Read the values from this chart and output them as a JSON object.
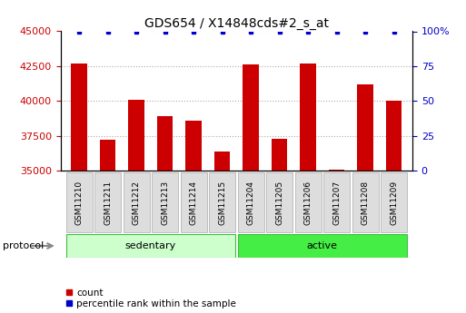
{
  "title": "GDS654 / X14848cds#2_s_at",
  "samples": [
    "GSM11210",
    "GSM11211",
    "GSM11212",
    "GSM11213",
    "GSM11214",
    "GSM11215",
    "GSM11204",
    "GSM11205",
    "GSM11206",
    "GSM11207",
    "GSM11208",
    "GSM11209"
  ],
  "counts": [
    42700,
    37200,
    40100,
    38900,
    38600,
    36400,
    42600,
    37300,
    42700,
    35050,
    41200,
    40000
  ],
  "percentile_ranks": [
    100,
    100,
    100,
    100,
    100,
    100,
    100,
    100,
    100,
    100,
    100,
    100
  ],
  "bar_color": "#cc0000",
  "dot_color": "#0000cc",
  "ylim_left": [
    35000,
    45000
  ],
  "ylim_right": [
    0,
    100
  ],
  "yticks_left": [
    35000,
    37500,
    40000,
    42500,
    45000
  ],
  "yticks_right": [
    0,
    25,
    50,
    75,
    100
  ],
  "ytick_labels_right": [
    "0",
    "25",
    "50",
    "75",
    "100%"
  ],
  "groups": [
    {
      "label": "sedentary",
      "start": 0,
      "end": 6,
      "color": "#ccffcc",
      "border": "#44bb44"
    },
    {
      "label": "active",
      "start": 6,
      "end": 12,
      "color": "#44ee44",
      "border": "#44bb44"
    }
  ],
  "protocol_label": "protocol",
  "legend_items": [
    {
      "label": "count",
      "color": "#cc0000"
    },
    {
      "label": "percentile rank within the sample",
      "color": "#0000cc"
    }
  ],
  "background_color": "#ffffff",
  "grid_color": "#aaaaaa",
  "tick_label_color_left": "#cc0000",
  "tick_label_color_right": "#0000cc",
  "sample_box_color": "#dddddd",
  "sample_box_edge": "#aaaaaa",
  "protocol_arrow_color": "#888888"
}
